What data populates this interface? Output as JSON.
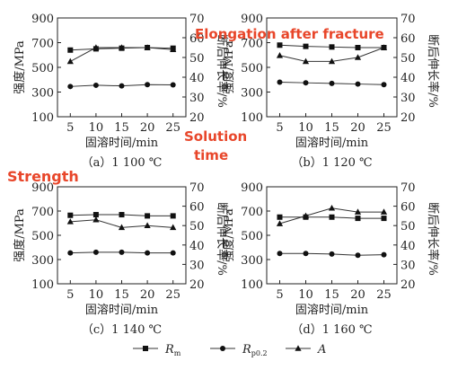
{
  "chart_data": [
    {
      "type": "line",
      "caption": "（a）1 100 ℃",
      "x": [
        5,
        10,
        15,
        20,
        25
      ],
      "xlabel": "固溶时间/min",
      "ylabel": "强度/MPa",
      "ylabel_right": "断后伸长率/%",
      "ylim": [
        100,
        900
      ],
      "yticks": [
        100,
        300,
        500,
        700,
        900
      ],
      "ylim_right": [
        20,
        70
      ],
      "yticks_right": [
        20,
        30,
        40,
        50,
        60,
        70
      ],
      "series": [
        {
          "name": "R_m",
          "axis": "left",
          "marker": "square",
          "values": [
            640,
            650,
            655,
            660,
            655
          ]
        },
        {
          "name": "R_p0.2",
          "axis": "left",
          "marker": "circle",
          "values": [
            345,
            355,
            350,
            360,
            358
          ]
        },
        {
          "name": "A",
          "axis": "right",
          "marker": "triangle",
          "values": [
            48,
            55,
            55,
            55,
            54
          ]
        }
      ]
    },
    {
      "type": "line",
      "caption": "（b）1 120 ℃",
      "x": [
        5,
        10,
        15,
        20,
        25
      ],
      "xlabel": "固溶时间/min",
      "ylabel": "强度/MPa",
      "ylabel_right": "断后伸长率/%",
      "ylim": [
        100,
        900
      ],
      "yticks": [
        100,
        300,
        500,
        700,
        900
      ],
      "ylim_right": [
        20,
        70
      ],
      "yticks_right": [
        20,
        30,
        40,
        50,
        60,
        70
      ],
      "series": [
        {
          "name": "R_m",
          "axis": "left",
          "marker": "square",
          "values": [
            680,
            670,
            665,
            660,
            660
          ]
        },
        {
          "name": "R_p0.2",
          "axis": "left",
          "marker": "circle",
          "values": [
            380,
            375,
            370,
            365,
            360
          ]
        },
        {
          "name": "A",
          "axis": "right",
          "marker": "triangle",
          "values": [
            51,
            48,
            48,
            50,
            55
          ]
        }
      ]
    },
    {
      "type": "line",
      "caption": "（c）1 140 ℃",
      "x": [
        5,
        10,
        15,
        20,
        25
      ],
      "xlabel": "固溶时间/min",
      "ylabel": "强度/MPa",
      "ylabel_right": "断后伸长率/%",
      "ylim": [
        100,
        900
      ],
      "yticks": [
        100,
        300,
        500,
        700,
        900
      ],
      "ylim_right": [
        20,
        70
      ],
      "yticks_right": [
        20,
        30,
        40,
        50,
        60,
        70
      ],
      "series": [
        {
          "name": "R_m",
          "axis": "left",
          "marker": "square",
          "values": [
            665,
            670,
            670,
            660,
            660
          ]
        },
        {
          "name": "R_p0.2",
          "axis": "left",
          "marker": "circle",
          "values": [
            355,
            360,
            360,
            355,
            355
          ]
        },
        {
          "name": "A",
          "axis": "right",
          "marker": "triangle",
          "values": [
            52,
            53,
            49,
            50,
            49
          ]
        }
      ]
    },
    {
      "type": "line",
      "caption": "（d）1 160 ℃",
      "x": [
        5,
        10,
        15,
        20,
        25
      ],
      "xlabel": "固溶时间/min",
      "ylabel": "强度/MPa",
      "ylabel_right": "断后伸长率/%",
      "ylim": [
        100,
        900
      ],
      "yticks": [
        100,
        300,
        500,
        700,
        900
      ],
      "ylim_right": [
        20,
        70
      ],
      "yticks_right": [
        20,
        30,
        40,
        50,
        60,
        70
      ],
      "series": [
        {
          "name": "R_m",
          "axis": "left",
          "marker": "square",
          "values": [
            650,
            650,
            650,
            640,
            640
          ]
        },
        {
          "name": "R_p0.2",
          "axis": "left",
          "marker": "circle",
          "values": [
            350,
            350,
            345,
            335,
            340
          ]
        },
        {
          "name": "A",
          "axis": "right",
          "marker": "triangle",
          "values": [
            51,
            55,
            59,
            57,
            57
          ]
        }
      ]
    }
  ],
  "legend": {
    "items": [
      {
        "marker": "square",
        "name": "R",
        "subscript": "m"
      },
      {
        "marker": "circle",
        "name": "R",
        "subscript": "p0.2"
      },
      {
        "marker": "triangle",
        "name": "A",
        "subscript": ""
      }
    ]
  },
  "annotations": {
    "elongation": "Elongation after fracture",
    "solution_time_line1": "Solution",
    "solution_time_line2": "time",
    "strength": "Strength"
  },
  "colors": {
    "annotation": "#e8462a",
    "line": "#333333"
  }
}
